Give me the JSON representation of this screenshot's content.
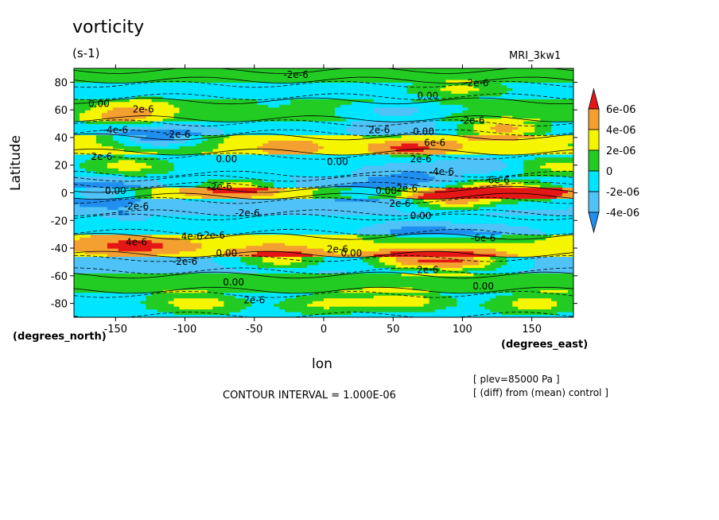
{
  "title": "vorticity",
  "units": "(s-1)",
  "model_label": "MRI_3kw1",
  "y_axis_title": "Latitude",
  "x_axis_title": "lon",
  "y_units": "(degrees_north)",
  "x_units": "(degrees_east)",
  "contour_interval_text": "CONTOUR INTERVAL = 1.000E-06",
  "notes": [
    "[ plev=85000 Pa ]",
    "[ (diff) from (mean) control ]"
  ],
  "colors": {
    "lt_-4e-06": "#1f8ff0",
    "-4e-06_to_-2e-06": "#4fc3f7",
    "-2e-06_to_0": "#00e5ff",
    "0_to_2e-06": "#22cc22",
    "2e-06_to_4e-06": "#f5f500",
    "4e-06_to_6e-06": "#f4a030",
    "gt_6e-06": "#e51616"
  },
  "chart_data": {
    "type": "heatmap",
    "title": "vorticity",
    "subtitle": "(s-1)",
    "xlabel": "lon",
    "ylabel": "Latitude",
    "xlim": [
      -180,
      180
    ],
    "ylim": [
      -90,
      90
    ],
    "x_ticks": [
      "-150",
      "-100",
      "-50",
      "0",
      "50",
      "100",
      "150"
    ],
    "x_tick_values": [
      -150,
      -100,
      -50,
      0,
      50,
      100,
      150
    ],
    "y_ticks": [
      "-80",
      "-60",
      "-40",
      "-20",
      "0",
      "20",
      "40",
      "60",
      "80"
    ],
    "y_tick_values": [
      -80,
      -60,
      -40,
      -20,
      0,
      20,
      40,
      60,
      80
    ],
    "colorbar_labels": [
      "6e-06",
      "4e-06",
      "2e-06",
      "0",
      "-2e-06",
      "-4e-06"
    ],
    "colorbar_levels": [
      -4e-06,
      -2e-06,
      0,
      2e-06,
      4e-06,
      6e-06
    ],
    "contour_interval": 1e-06,
    "grid": false,
    "legend": "right",
    "bands": [
      {
        "lat": [
          80,
          90
        ],
        "value": 5e-07
      },
      {
        "lat": [
          68,
          80
        ],
        "value": -1e-06
      },
      {
        "lat": [
          52,
          68
        ],
        "value": 5e-07
      },
      {
        "lat": [
          42,
          52
        ],
        "value": -1.5e-06
      },
      {
        "lat": [
          28,
          42
        ],
        "value": 2.5e-06
      },
      {
        "lat": [
          12,
          28
        ],
        "value": -1.5e-06
      },
      {
        "lat": [
          4,
          12
        ],
        "value": -2.5e-06
      },
      {
        "lat": [
          -4,
          4
        ],
        "value": 3e-06
      },
      {
        "lat": [
          -16,
          -4
        ],
        "value": -2.5e-06
      },
      {
        "lat": [
          -30,
          -16
        ],
        "value": -1e-06
      },
      {
        "lat": [
          -46,
          -30
        ],
        "value": 3e-06
      },
      {
        "lat": [
          -58,
          -46
        ],
        "value": -2.5e-06
      },
      {
        "lat": [
          -72,
          -58
        ],
        "value": 1e-06
      },
      {
        "lat": [
          -90,
          -72
        ],
        "value": -1e-06
      }
    ],
    "blobs": [
      {
        "lon": 60,
        "lat": 33,
        "value": 7e-06
      },
      {
        "lon": -20,
        "lat": 33,
        "value": 4.5e-06
      },
      {
        "lon": 130,
        "lat": 47,
        "value": 4.5e-06
      },
      {
        "lon": -145,
        "lat": 55,
        "value": 4.5e-06
      },
      {
        "lon": 100,
        "lat": 75,
        "value": 3e-06
      },
      {
        "lon": -140,
        "lat": 20,
        "value": 3e-06
      },
      {
        "lon": -60,
        "lat": 5,
        "value": 3e-06
      },
      {
        "lon": 120,
        "lat": 5,
        "value": 3.5e-06
      },
      {
        "lon": 150,
        "lat": 0,
        "value": 7e-06
      },
      {
        "lon": 95,
        "lat": -5,
        "value": 5e-06
      },
      {
        "lon": 30,
        "lat": 0,
        "value": -1.5e-06
      },
      {
        "lon": -160,
        "lat": 0,
        "value": -3e-06
      },
      {
        "lon": -135,
        "lat": -38,
        "value": 7e-06
      },
      {
        "lon": -100,
        "lat": -38,
        "value": 4e-06
      },
      {
        "lon": -40,
        "lat": -40,
        "value": 3e-06
      },
      {
        "lon": 100,
        "lat": -50,
        "value": 4.5e-06
      },
      {
        "lon": 60,
        "lat": -48,
        "value": 4e-06
      },
      {
        "lon": -30,
        "lat": -48,
        "value": 3e-06
      },
      {
        "lon": 60,
        "lat": 12,
        "value": -4.5e-06
      },
      {
        "lon": 110,
        "lat": 20,
        "value": -4e-06
      },
      {
        "lon": 70,
        "lat": -28,
        "value": -5e-06
      },
      {
        "lon": 120,
        "lat": -30,
        "value": -4.5e-06
      },
      {
        "lon": -140,
        "lat": -15,
        "value": -4e-06
      },
      {
        "lon": -120,
        "lat": 40,
        "value": -4.5e-06
      },
      {
        "lon": 60,
        "lat": 45,
        "value": -3.5e-06
      },
      {
        "lon": -130,
        "lat": -55,
        "value": -4e-06
      },
      {
        "lon": 50,
        "lat": 60,
        "value": -3e-06
      },
      {
        "lon": -140,
        "lat": 62,
        "value": 2.5e-06
      },
      {
        "lon": 60,
        "lat": -78,
        "value": 3e-06
      },
      {
        "lon": 150,
        "lat": -80,
        "value": 3e-06
      },
      {
        "lon": -90,
        "lat": -80,
        "value": 3e-06
      },
      {
        "lon": 0,
        "lat": -80,
        "value": 2.5e-06
      },
      {
        "lon": 170,
        "lat": 20,
        "value": 3e-06
      }
    ],
    "contour_labels": [
      {
        "text": "-2e-6",
        "lon": -20,
        "lat": 83
      },
      {
        "text": "-2e-6",
        "lon": 110,
        "lat": 77
      },
      {
        "text": "0.00",
        "lon": 75,
        "lat": 68
      },
      {
        "text": "0.00",
        "lon": -162,
        "lat": 62
      },
      {
        "text": "2e-6",
        "lon": -130,
        "lat": 58
      },
      {
        "text": "-2e-6",
        "lon": 107,
        "lat": 50
      },
      {
        "text": "-4e-6",
        "lon": -150,
        "lat": 43
      },
      {
        "text": "-2e-6",
        "lon": -105,
        "lat": 40
      },
      {
        "text": "2e-6",
        "lon": 40,
        "lat": 43
      },
      {
        "text": "0.00",
        "lon": 72,
        "lat": 42
      },
      {
        "text": "6e-6",
        "lon": 80,
        "lat": 34
      },
      {
        "text": "2e-6",
        "lon": -160,
        "lat": 24
      },
      {
        "text": "0.00",
        "lon": -70,
        "lat": 22
      },
      {
        "text": "0.00",
        "lon": 10,
        "lat": 20
      },
      {
        "text": "2e-6",
        "lon": 70,
        "lat": 22
      },
      {
        "text": "-4e-6",
        "lon": 85,
        "lat": 13
      },
      {
        "text": "-6e-6",
        "lon": 125,
        "lat": 7
      },
      {
        "text": "-2e-6",
        "lon": -75,
        "lat": 2
      },
      {
        "text": "0.00",
        "lon": -150,
        "lat": -1
      },
      {
        "text": "0.00",
        "lon": 45,
        "lat": -1
      },
      {
        "text": "2e-6",
        "lon": 60,
        "lat": 1
      },
      {
        "text": "-2e-6",
        "lon": -135,
        "lat": -12
      },
      {
        "text": "2e-6",
        "lon": 55,
        "lat": -10
      },
      {
        "text": "0.00",
        "lon": 70,
        "lat": -19
      },
      {
        "text": "-2e-6",
        "lon": -55,
        "lat": -17
      },
      {
        "text": "-6e-6",
        "lon": 115,
        "lat": -35
      },
      {
        "text": "4e-6",
        "lon": -135,
        "lat": -38
      },
      {
        "text": "4e-6",
        "lon": -95,
        "lat": -34
      },
      {
        "text": "-2e-6",
        "lon": -80,
        "lat": -33
      },
      {
        "text": "0.00",
        "lon": -70,
        "lat": -46
      },
      {
        "text": "2e-6",
        "lon": 10,
        "lat": -43
      },
      {
        "text": "0.00",
        "lon": 20,
        "lat": -46
      },
      {
        "text": "-2e-6",
        "lon": -100,
        "lat": -52
      },
      {
        "text": "2e-6",
        "lon": 75,
        "lat": -58
      },
      {
        "text": "0.00",
        "lon": -65,
        "lat": -67
      },
      {
        "text": "0.00",
        "lon": 115,
        "lat": -70
      },
      {
        "text": "2e-6",
        "lon": -50,
        "lat": -80
      }
    ]
  }
}
